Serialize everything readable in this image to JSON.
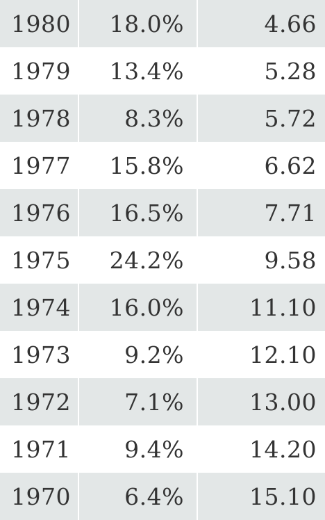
{
  "colors": {
    "row_shade": "#e3e7e7",
    "text": "#333333",
    "background": "#ffffff"
  },
  "rows": [
    {
      "year": "1980",
      "percent": "18.0%",
      "value": "4.66"
    },
    {
      "year": "1979",
      "percent": "13.4%",
      "value": "5.28"
    },
    {
      "year": "1978",
      "percent": "8.3%",
      "value": "5.72"
    },
    {
      "year": "1977",
      "percent": "15.8%",
      "value": "6.62"
    },
    {
      "year": "1976",
      "percent": "16.5%",
      "value": "7.71"
    },
    {
      "year": "1975",
      "percent": "24.2%",
      "value": "9.58"
    },
    {
      "year": "1974",
      "percent": "16.0%",
      "value": "11.10"
    },
    {
      "year": "1973",
      "percent": "9.2%",
      "value": "12.10"
    },
    {
      "year": "1972",
      "percent": "7.1%",
      "value": "13.00"
    },
    {
      "year": "1971",
      "percent": "9.4%",
      "value": "14.20"
    },
    {
      "year": "1970",
      "percent": "6.4%",
      "value": "15.10"
    }
  ]
}
